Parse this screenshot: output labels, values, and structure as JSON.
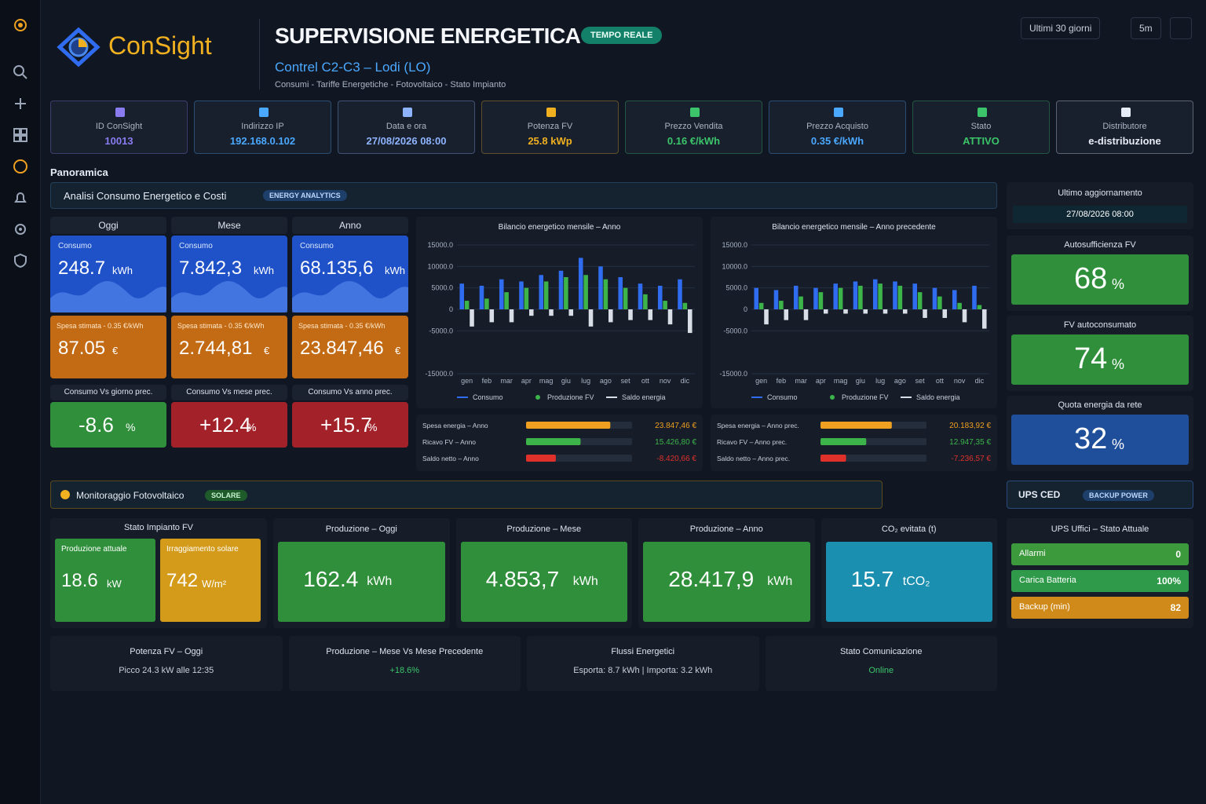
{
  "header": {
    "brand": "ConSight",
    "title": "SUPERVISIONE ENERGETICA",
    "badge": "TEMPO REALE",
    "subtitle": "Contrel C2-C3 – Lodi (LO)",
    "tagline": "Consumi - Tariffe Energetiche - Fotovoltaico - Stato Impianto"
  },
  "toolbar": {
    "range": "Ultimi 30 giorni",
    "refresh": "5m"
  },
  "info_cards": [
    {
      "label": "ID ConSight",
      "value": "10013",
      "color": "#8a7cf0"
    },
    {
      "label": "Indirizzo IP",
      "value": "192.168.0.102",
      "color": "#4aa8ff"
    },
    {
      "label": "Data e ora",
      "value": "27/08/2026 08:00",
      "color": "#8fb4ff"
    },
    {
      "label": "Potenza FV",
      "value": "25.8 kWp",
      "color": "#f0b020"
    },
    {
      "label": "Prezzo Vendita",
      "value": "0.16 €/kWh",
      "color": "#3cc46a"
    },
    {
      "label": "Prezzo Acquisto",
      "value": "0.35 €/kWh",
      "color": "#4aa8ff"
    },
    {
      "label": "Stato",
      "value": "ATTIVO",
      "color": "#3cc46a"
    },
    {
      "label": "Distributore",
      "value": "e-distribuzione",
      "color": "#e6ecf5"
    }
  ],
  "overview": {
    "title": "Panoramica",
    "banner": "Analisi Consumo Energetico e Costi",
    "banner_badge": "ENERGY ANALYTICS"
  },
  "periods": [
    {
      "name": "Oggi",
      "consumption_label": "Consumo",
      "consumption": "248.7",
      "consumption_unit": "kWh",
      "cost_label": "Spesa stimata - 0.35 €/kWh",
      "cost": "87.05",
      "cost_unit": "€",
      "compare_label": "Consumo Vs giorno prec.",
      "compare": "-8.6",
      "compare_unit": "%",
      "compare_color": "#2f8f3a"
    },
    {
      "name": "Mese",
      "consumption_label": "Consumo",
      "consumption": "7.842,3",
      "consumption_unit": "kWh",
      "cost_label": "Spesa stimata - 0.35 €/kWh",
      "cost": "2.744,81",
      "cost_unit": "€",
      "compare_label": "Consumo Vs mese prec.",
      "compare": "+12.4",
      "compare_unit": "%",
      "compare_color": "#a3222a"
    },
    {
      "name": "Anno",
      "consumption_label": "Consumo",
      "consumption": "68.135,6",
      "consumption_unit": "kWh",
      "cost_label": "Spesa stimata - 0.35 €/kWh",
      "cost": "23.847,46",
      "cost_unit": "€",
      "compare_label": "Consumo Vs anno prec.",
      "compare": "+15.7",
      "compare_unit": "%",
      "compare_color": "#a3222a"
    }
  ],
  "charts": [
    {
      "type": "bar",
      "title": "Bilancio energetico mensile – Anno",
      "categories": [
        "gen",
        "feb",
        "mar",
        "apr",
        "mag",
        "giu",
        "lug",
        "ago",
        "set",
        "ott",
        "nov",
        "dic"
      ],
      "series": [
        {
          "name": "Consumo",
          "color": "#2f6cf0",
          "values": [
            6000,
            5500,
            7000,
            6500,
            8000,
            9000,
            12000,
            10000,
            7500,
            6000,
            5500,
            7000
          ]
        },
        {
          "name": "Produzione FV",
          "color": "#3cb44a",
          "values": [
            2000,
            2500,
            4000,
            5000,
            6500,
            7500,
            8000,
            7000,
            5000,
            3500,
            2000,
            1500
          ]
        },
        {
          "name": "Saldo energia",
          "color": "#d8dde6",
          "values": [
            -4000,
            -3000,
            -3000,
            -1500,
            -1500,
            -1500,
            -4000,
            -3000,
            -2500,
            -2500,
            -3500,
            -5500
          ]
        }
      ],
      "ylim": [
        -15000,
        15000
      ],
      "yticks": [
        {
          "value": 15000,
          "label": "15000.0"
        },
        {
          "value": 10000,
          "label": "10000.0"
        },
        {
          "value": 5000,
          "label": "5000.0"
        },
        0,
        {
          "value": -5000,
          "label": "-5000.0"
        },
        {
          "value": -15000,
          "label": "-15000.0"
        }
      ]
    },
    {
      "type": "bar",
      "title": "Bilancio energetico mensile – Anno precedente",
      "categories": [
        "gen",
        "feb",
        "mar",
        "apr",
        "mag",
        "giu",
        "lug",
        "ago",
        "set",
        "ott",
        "nov",
        "dic"
      ],
      "series": [
        {
          "name": "Consumo",
          "color": "#2f6cf0",
          "values": [
            5000,
            4500,
            5500,
            5000,
            6000,
            6500,
            7000,
            6500,
            6000,
            5000,
            4500,
            5500
          ]
        },
        {
          "name": "Produzione FV",
          "color": "#3cb44a",
          "values": [
            1500,
            2000,
            3000,
            4000,
            5000,
            5500,
            6000,
            5500,
            4000,
            3000,
            1500,
            1000
          ]
        },
        {
          "name": "Saldo energia",
          "color": "#d8dde6",
          "values": [
            -3500,
            -2500,
            -2500,
            -1000,
            -1000,
            -1000,
            -1000,
            -1000,
            -2000,
            -2000,
            -3000,
            -4500
          ]
        }
      ],
      "ylim": [
        -15000,
        15000
      ],
      "yticks": [
        {
          "value": 15000,
          "label": "15000.0"
        },
        {
          "value": 10000,
          "label": "10000.0"
        },
        {
          "value": 5000,
          "label": "5000.0"
        },
        0,
        {
          "value": -5000,
          "label": "-5000.0"
        },
        {
          "value": -15000,
          "label": "-15000.0"
        }
      ]
    }
  ],
  "cost_panels": [
    {
      "xlim": [
        0,
        30000
      ],
      "rows": [
        {
          "label": "Spesa energia – Anno",
          "value": 23847.46,
          "value_label": "23.847,46 €",
          "color": "#f0a020"
        },
        {
          "label": "Ricavo FV – Anno",
          "value": 15426.8,
          "value_label": "15.426,80 €",
          "color": "#3cb44a"
        },
        {
          "label": "Saldo netto – Anno",
          "value": -8420.66,
          "value_label": "-8.420,66 €",
          "color": "#e0302a"
        }
      ]
    },
    {
      "xlim": [
        0,
        30000
      ],
      "rows": [
        {
          "label": "Spesa energia – Anno prec.",
          "value": 20183.92,
          "value_label": "20.183,92 €",
          "color": "#f0a020"
        },
        {
          "label": "Ricavo FV – Anno prec.",
          "value": 12947.35,
          "value_label": "12.947,35 €",
          "color": "#3cb44a"
        },
        {
          "label": "Saldo netto – Anno prec.",
          "value": -7236.57,
          "value_label": "-7.236,57 €",
          "color": "#e0302a"
        }
      ]
    }
  ],
  "side": {
    "update_label": "Ultimo aggiornamento",
    "update_value": "27/08/2026 08:00",
    "kpis": [
      {
        "label": "Autosufficienza FV",
        "value": "68",
        "unit": "%",
        "color": "#2f8f3a"
      },
      {
        "label": "FV autoconsumato",
        "value": "74",
        "unit": "%",
        "color": "#2f8f3a"
      },
      {
        "label": "Quota energia da rete",
        "value": "32",
        "unit": "%",
        "color": "#1f4f9a"
      }
    ]
  },
  "pv": {
    "banner": "Monitoraggio Fotovoltaico",
    "badge": "SOLARE",
    "status_title": "Stato Impianto FV",
    "status_tiles": [
      {
        "label": "Produzione attuale",
        "value": "18.6",
        "unit": "kW",
        "color": "#2f8f3a"
      },
      {
        "label": "Irraggiamento solare",
        "value": "742",
        "unit": "W/m²",
        "color": "#d49a1a"
      }
    ],
    "tiles": [
      {
        "label": "Produzione – Oggi",
        "value": "162.4",
        "unit": "kWh",
        "color": "#2f8f3a"
      },
      {
        "label": "Produzione – Mese",
        "value": "4.853,7",
        "unit": "kWh",
        "color": "#2f8f3a"
      },
      {
        "label": "Produzione – Anno",
        "value": "28.417,9",
        "unit": "kWh",
        "color": "#2f8f3a"
      },
      {
        "label": "CO₂ evitata (t)",
        "value": "15.7",
        "unit": "tCO₂",
        "color": "#1a8fb0"
      }
    ],
    "footer": [
      {
        "title": "Potenza FV – Oggi",
        "text": "Picco 24.3 kW alle 12:35",
        "color": "#c8d0dc"
      },
      {
        "title": "Produzione – Mese Vs Mese Precedente",
        "text": "+18.6%",
        "color": "#3cc46a"
      },
      {
        "title": "Flussi Energetici",
        "text": "Esporta: 8.7 kWh | Importa: 3.2 kWh",
        "color": "#c8d0dc"
      },
      {
        "title": "Stato Comunicazione",
        "text": "Online",
        "color": "#3cc46a"
      }
    ]
  },
  "ups": {
    "banner": "UPS CED",
    "badge": "BACKUP POWER",
    "status_title": "UPS Uffici – Stato Attuale",
    "rows": [
      {
        "label": "Allarmi",
        "value": "0",
        "color": "#3c9a3c"
      },
      {
        "label": "Carica Batteria",
        "value": "100%",
        "color": "#2f9a4a"
      },
      {
        "label": "Backup (min)",
        "value": "82",
        "color": "#d08a1a"
      }
    ]
  }
}
